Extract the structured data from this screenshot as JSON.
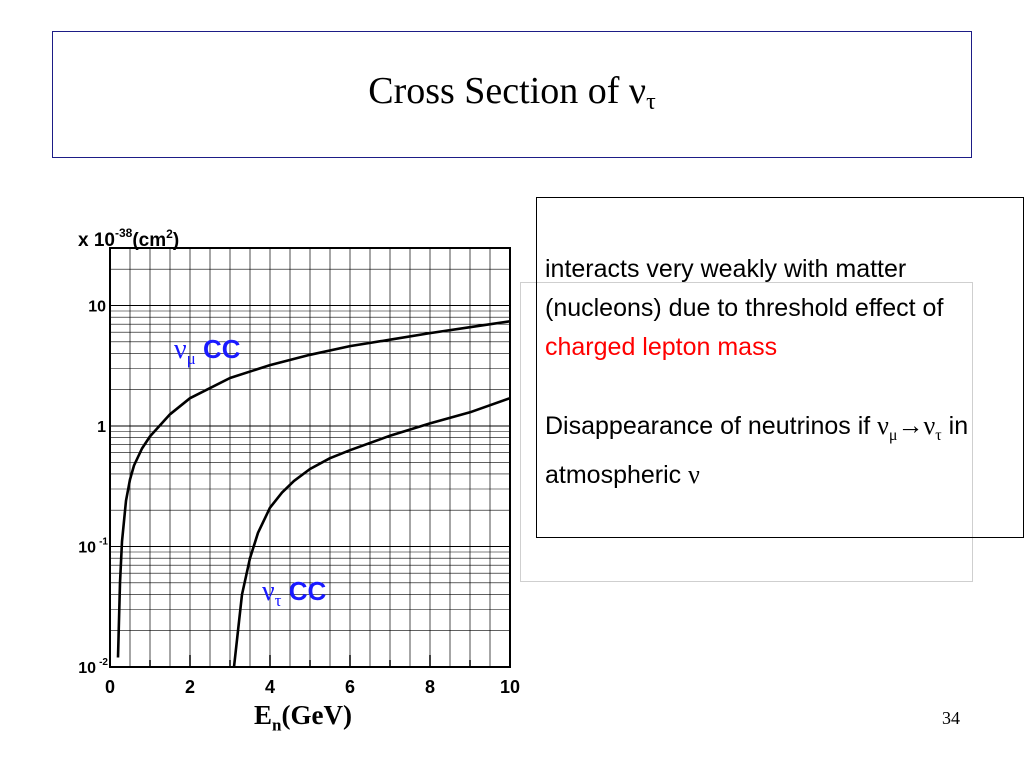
{
  "slide": {
    "title_main": "Cross Section of ν",
    "title_sub": "τ",
    "page_number": "34"
  },
  "note": {
    "line1": "interacts very weakly with matter (nucleons) due to threshold effect of ",
    "highlight": "charged lepton mass",
    "line2_a": "Disappearance of neutrinos if ",
    "nu": "ν",
    "mu": "μ",
    "arrow": "→",
    "tau": "τ",
    "line2_b": " in atmospheric ",
    "nu_end": "ν"
  },
  "axis_label": {
    "x_main": "E",
    "x_sub": "n",
    "x_unit": "(GeV)"
  },
  "colors": {
    "label_blue": "#1a1aff",
    "highlight_red": "#ff0000"
  },
  "chart_data": {
    "type": "line",
    "title": "",
    "ylabel_prefix": "x 10",
    "ylabel_exp": "-38",
    "ylabel_unit": "(cm",
    "ylabel_unit_exp": "2",
    "ylabel_close": ")",
    "xlim": [
      0,
      10
    ],
    "ylim": [
      0.01,
      30
    ],
    "yscale": "log",
    "grid": true,
    "x_ticks": [
      "0",
      "2",
      "4",
      "6",
      "8",
      "10"
    ],
    "y_ticks": [
      {
        "value": 10,
        "label": "10",
        "exp": ""
      },
      {
        "value": 1,
        "label": "1",
        "exp": ""
      },
      {
        "value": 0.1,
        "label": "10",
        "exp": "-1"
      },
      {
        "value": 0.01,
        "label": "10",
        "exp": "-2"
      }
    ],
    "series": [
      {
        "name": "νμ CC",
        "label_nu": "ν",
        "label_sub": "μ",
        "label_text": "CC",
        "x": [
          0.2,
          0.25,
          0.3,
          0.4,
          0.5,
          0.6,
          0.8,
          1.0,
          1.5,
          2.0,
          3.0,
          4.0,
          5.0,
          6.0,
          7.0,
          8.0,
          9.0,
          10.0
        ],
        "y": [
          0.012,
          0.05,
          0.11,
          0.24,
          0.36,
          0.47,
          0.65,
          0.82,
          1.25,
          1.7,
          2.5,
          3.2,
          3.9,
          4.6,
          5.2,
          5.9,
          6.6,
          7.4
        ]
      },
      {
        "name": "ντ CC",
        "label_nu": "ν",
        "label_sub": "τ",
        "label_text": "CC",
        "x": [
          3.1,
          3.2,
          3.3,
          3.5,
          3.7,
          4.0,
          4.3,
          4.6,
          5.0,
          5.5,
          6.0,
          7.0,
          8.0,
          9.0,
          10.0
        ],
        "y": [
          0.01,
          0.02,
          0.04,
          0.08,
          0.13,
          0.21,
          0.28,
          0.35,
          0.44,
          0.54,
          0.63,
          0.83,
          1.05,
          1.3,
          1.7
        ]
      }
    ]
  }
}
